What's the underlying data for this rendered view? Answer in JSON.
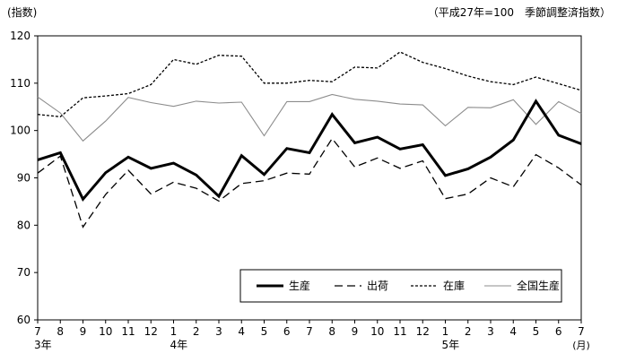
{
  "chart_data": {
    "type": "line",
    "y_axis_label": "(指数)",
    "note": "（平成27年=100　季節調整済指数）",
    "ylim": [
      60,
      120
    ],
    "yticks": [
      60,
      70,
      80,
      90,
      100,
      110,
      120
    ],
    "months": [
      "7",
      "8",
      "9",
      "10",
      "11",
      "12",
      "1",
      "2",
      "3",
      "4",
      "5",
      "6",
      "7",
      "8",
      "9",
      "10",
      "11",
      "12",
      "1",
      "2",
      "3",
      "4",
      "5",
      "6",
      "7"
    ],
    "year_labels": [
      {
        "index": 0,
        "label": "3年"
      },
      {
        "index": 6,
        "label": "4年"
      },
      {
        "index": 18,
        "label": "5年"
      }
    ],
    "x_unit": "(月)",
    "grid": "none",
    "legend_placement": "bottom-right",
    "series": [
      {
        "name": "生産",
        "style": "thick-solid",
        "color": "#000000",
        "values": [
          93.8,
          95.3,
          85.5,
          91.1,
          94.4,
          92.0,
          93.1,
          90.6,
          86.1,
          94.7,
          90.7,
          96.2,
          95.3,
          103.4,
          97.4,
          98.6,
          96.1,
          97.0,
          90.5,
          91.9,
          94.4,
          98.0,
          106.2,
          99.0,
          97.2
        ]
      },
      {
        "name": "出荷",
        "style": "dashed",
        "color": "#000000",
        "values": [
          91.0,
          94.6,
          79.6,
          86.5,
          91.6,
          86.6,
          89.1,
          87.8,
          85.1,
          88.8,
          89.4,
          91.0,
          90.8,
          98.3,
          92.3,
          94.2,
          92.0,
          93.6,
          85.6,
          86.6,
          90.0,
          88.1,
          94.9,
          92.1,
          88.5
        ]
      },
      {
        "name": "在庫",
        "style": "dotted",
        "color": "#000000",
        "values": [
          103.4,
          102.9,
          106.9,
          107.3,
          107.8,
          109.7,
          115.0,
          114.0,
          115.9,
          115.7,
          110.0,
          110.0,
          110.6,
          110.3,
          113.4,
          113.2,
          116.6,
          114.4,
          113.1,
          111.5,
          110.3,
          109.7,
          111.3,
          109.9,
          108.5
        ]
      },
      {
        "name": "全国生産",
        "style": "thin-solid",
        "color": "#8c8c8c",
        "values": [
          107.1,
          103.7,
          97.8,
          102.0,
          107.0,
          105.9,
          105.1,
          106.2,
          105.8,
          106.0,
          98.9,
          106.1,
          106.1,
          107.6,
          106.6,
          106.2,
          105.6,
          105.4,
          101.0,
          104.9,
          104.8,
          106.5,
          101.3,
          106.1,
          103.6
        ]
      }
    ]
  }
}
